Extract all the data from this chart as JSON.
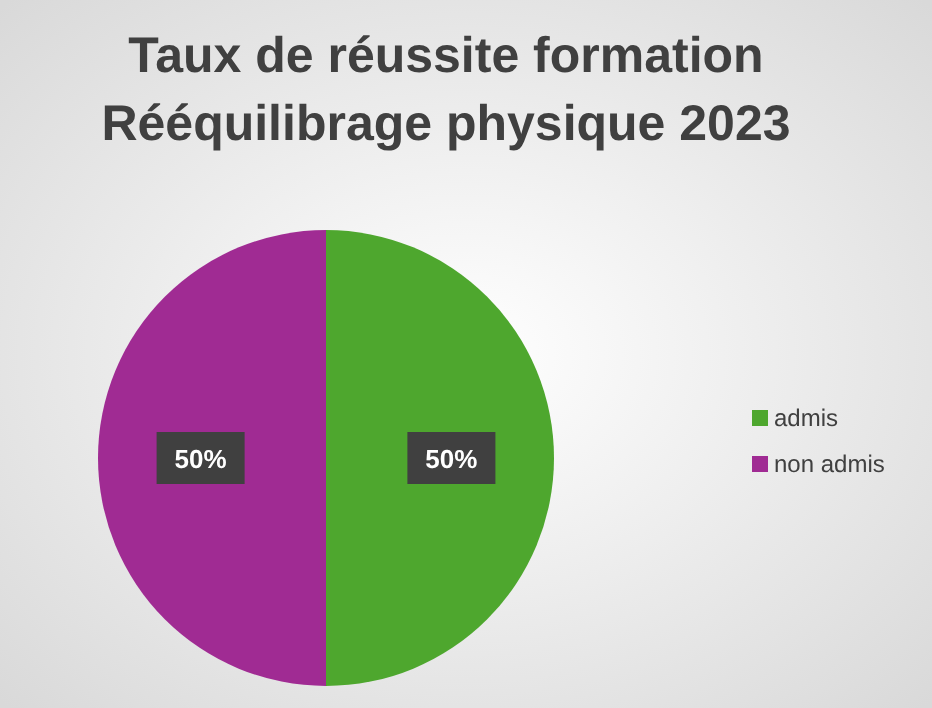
{
  "chart_data": {
    "type": "pie",
    "title": "Taux de réussite formation\nRééquilibrage physique 2023",
    "categories": [
      "admis",
      "non admis"
    ],
    "values": [
      50,
      50
    ],
    "colors": [
      "#4ea72e",
      "#a02b93"
    ],
    "value_labels": [
      "50%",
      "50%"
    ],
    "legend": "right"
  }
}
